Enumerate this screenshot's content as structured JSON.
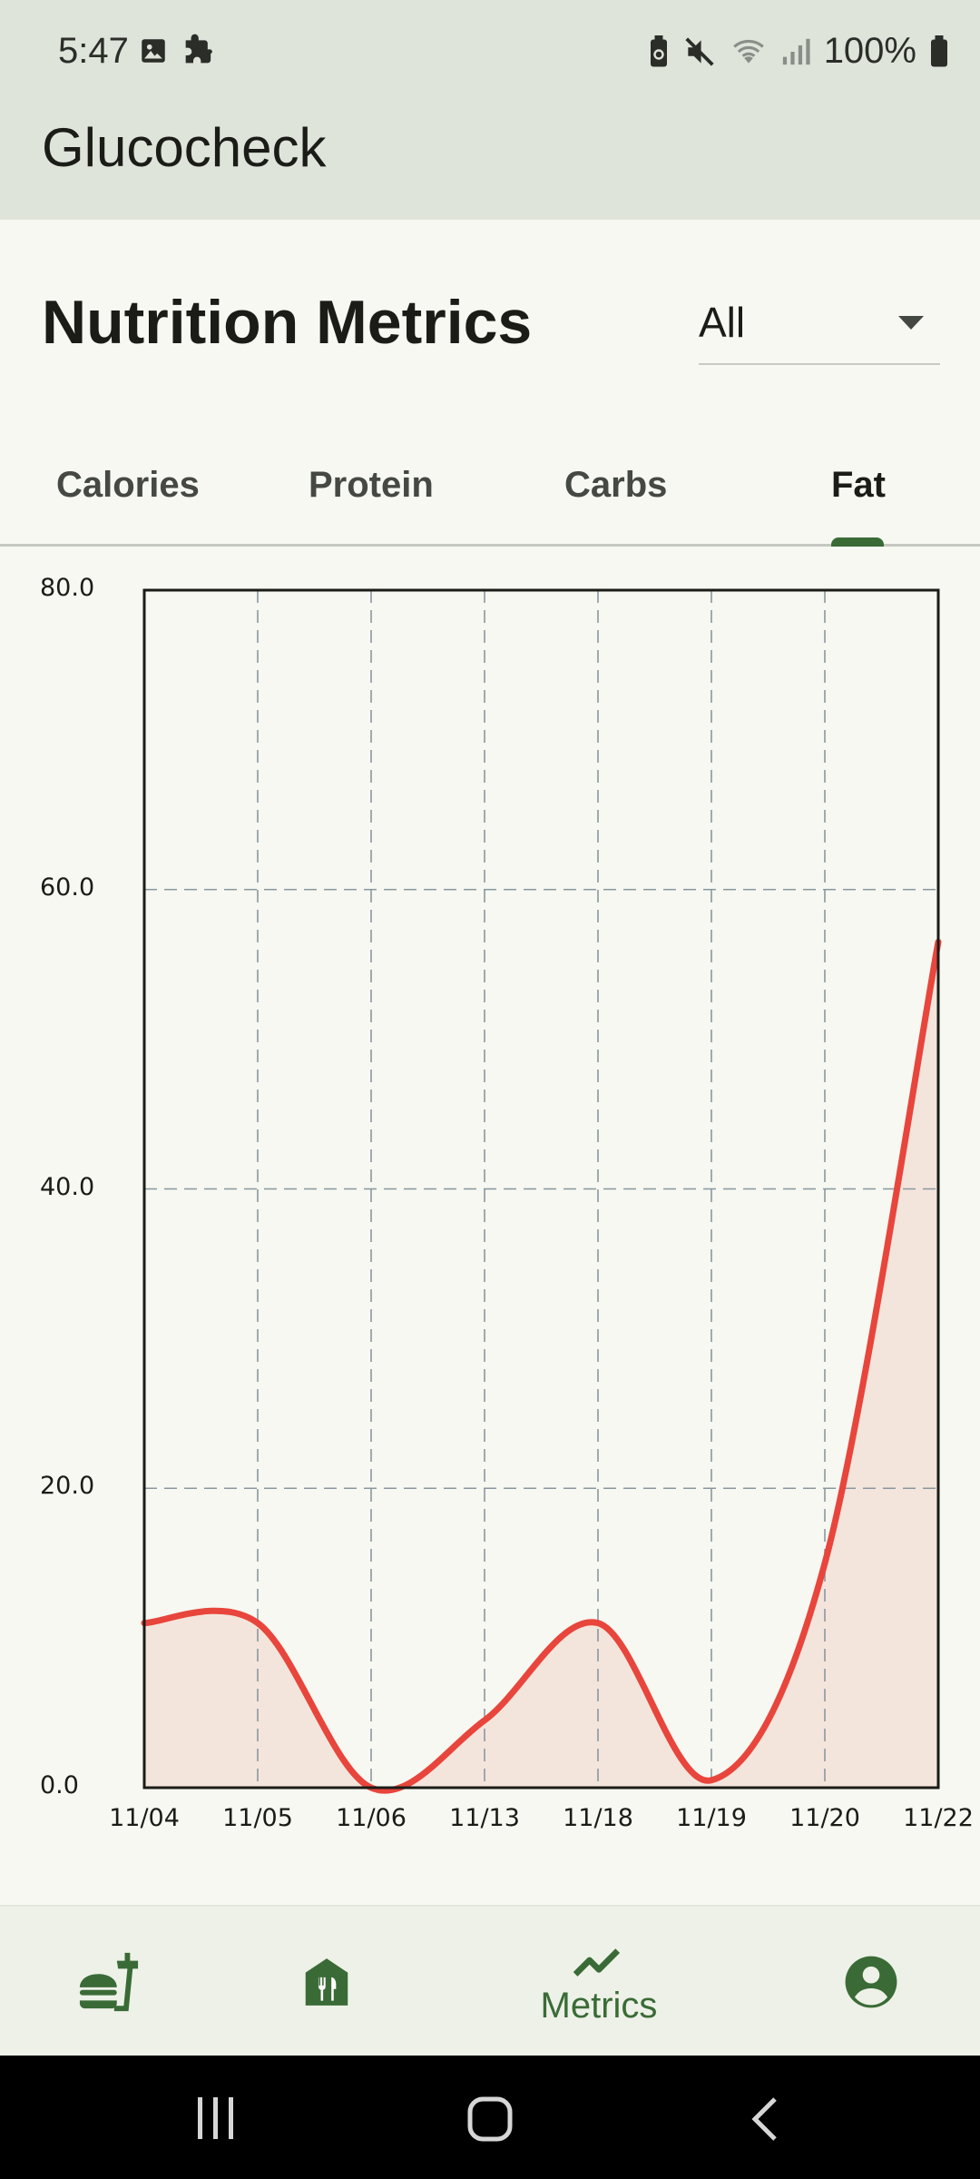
{
  "status_bar": {
    "time": "5:47",
    "battery": "100%",
    "icons": [
      "image-icon",
      "puzzle-icon",
      "battery-saver-icon",
      "mute-icon",
      "wifi-icon",
      "signal-icon",
      "battery-icon"
    ]
  },
  "app": {
    "title": "Glucocheck"
  },
  "page": {
    "title": "Nutrition Metrics"
  },
  "filter": {
    "value": "All"
  },
  "tabs": [
    {
      "label": "Calories",
      "active": false
    },
    {
      "label": "Protein",
      "active": false
    },
    {
      "label": "Carbs",
      "active": false
    },
    {
      "label": "Fat",
      "active": true
    }
  ],
  "chart_data": {
    "type": "area",
    "x": [
      "11/04",
      "11/05",
      "11/06",
      "11/13",
      "11/18",
      "11/19",
      "11/20",
      "11/22"
    ],
    "y_ticks": [
      "0.0",
      "20.0",
      "40.0",
      "60.0",
      "80.0"
    ],
    "ylim": [
      0,
      80
    ],
    "series": [
      {
        "values": [
          11.0,
          11.0,
          0.0,
          4.5,
          11.0,
          0.5,
          15.0,
          56.5
        ],
        "color": "#e8453c",
        "fill": "#f4e5dc"
      }
    ],
    "grid": true
  },
  "bottom_nav": {
    "items": [
      {
        "icon": "fastfood-icon",
        "label": ""
      },
      {
        "icon": "restaurant-icon",
        "label": ""
      },
      {
        "icon": "trend-line-icon",
        "label": "Metrics"
      },
      {
        "icon": "account-icon",
        "label": ""
      }
    ],
    "active_color": "#3a6b36"
  }
}
